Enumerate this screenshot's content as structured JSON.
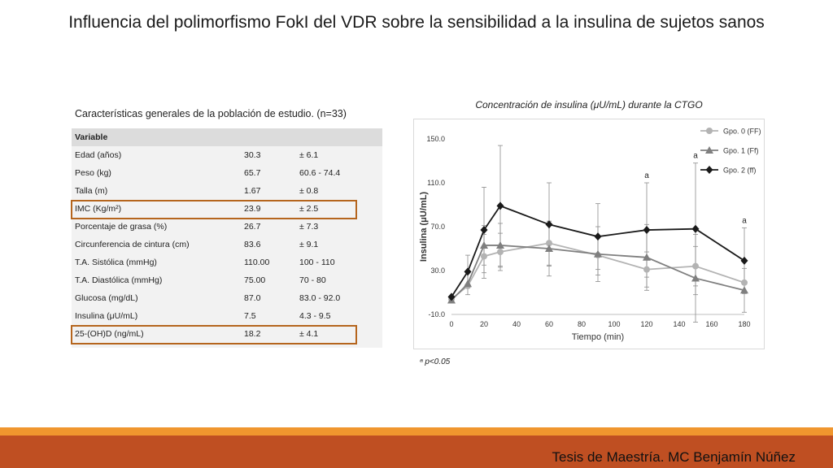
{
  "slide": {
    "title": "Influencia del polimorfismo FokI del VDR sobre la sensibilidad a la insulina de sujetos sanos",
    "footer": "Tesis de Maestría. MC Benjamín Núñez"
  },
  "table": {
    "caption": "Características generales de la población de estudio. (n=33)",
    "header": "Variable",
    "rows": [
      {
        "label": "Edad (años)",
        "value": "30.3",
        "range": "± 6.1"
      },
      {
        "label": "Peso (kg)",
        "value": "65.7",
        "range": "60.6 - 74.4"
      },
      {
        "label": "Talla (m)",
        "value": "1.67",
        "range": "± 0.8"
      },
      {
        "label": "IMC (Kg/m²)",
        "value": "23.9",
        "range": "± 2.5",
        "highlight": true
      },
      {
        "label": "Porcentaje de grasa (%)",
        "value": "26.7",
        "range": "± 7.3"
      },
      {
        "label": "Circunferencia de cintura (cm)",
        "value": "83.6",
        "range": "± 9.1"
      },
      {
        "label": "T.A. Sistólica (mmHg)",
        "value": "110.00",
        "range": "100 - 110"
      },
      {
        "label": "T.A. Diastólica (mmHg)",
        "value": "75.00",
        "range": "70 - 80"
      },
      {
        "label": "Glucosa (mg/dL)",
        "value": "87.0",
        "range": "83.0 - 92.0"
      },
      {
        "label": "Insulina (μU/mL)",
        "value": "7.5",
        "range": "4.3 - 9.5"
      },
      {
        "label": "25-(OH)D (ng/mL)",
        "value": "18.2",
        "range": "± 4.1",
        "highlight": true
      }
    ]
  },
  "chart_data": {
    "type": "line",
    "title": "Concentración de insulina (μU/mL) durante la CTGO",
    "xlabel": "Tiempo (min)",
    "ylabel": "Insulina (μU/mL)",
    "xlim": [
      0,
      180
    ],
    "ylim": [
      -10,
      150
    ],
    "xticks": [
      0,
      20,
      40,
      60,
      80,
      100,
      120,
      140,
      160,
      180
    ],
    "yticks": [
      "-10.0",
      "30.0",
      "70.0",
      "110.0",
      "150.0"
    ],
    "x": [
      0,
      10,
      20,
      30,
      60,
      90,
      120,
      150,
      180
    ],
    "legend_position": "top-right",
    "series": [
      {
        "name": "Gpo. 0 (FF)",
        "color": "#b3b3b3",
        "marker": "circle",
        "values": [
          4,
          16,
          43,
          47,
          55,
          44,
          31,
          34,
          19
        ],
        "errors": [
          null,
          null,
          20,
          17,
          20,
          18,
          16,
          18,
          null
        ]
      },
      {
        "name": "Gpo. 1 (Ff)",
        "color": "#7f7f7f",
        "marker": "triangle",
        "values": [
          3,
          18,
          53,
          53,
          50,
          45,
          42,
          23,
          12
        ],
        "errors": [
          null,
          10,
          18,
          20,
          25,
          25,
          30,
          40,
          20
        ]
      },
      {
        "name": "Gpo. 2 (ff)",
        "color": "#1a1a1a",
        "marker": "diamond",
        "values": [
          6,
          29,
          67,
          89,
          72,
          61,
          67,
          68,
          39
        ],
        "errors": [
          null,
          15,
          39,
          55,
          38,
          30,
          43,
          60,
          30
        ]
      }
    ],
    "annotations": [
      {
        "x": 120,
        "text": "a"
      },
      {
        "x": 150,
        "text": "a"
      },
      {
        "x": 180,
        "text": "a"
      }
    ],
    "footnote": "ᵃ p<0.05"
  }
}
